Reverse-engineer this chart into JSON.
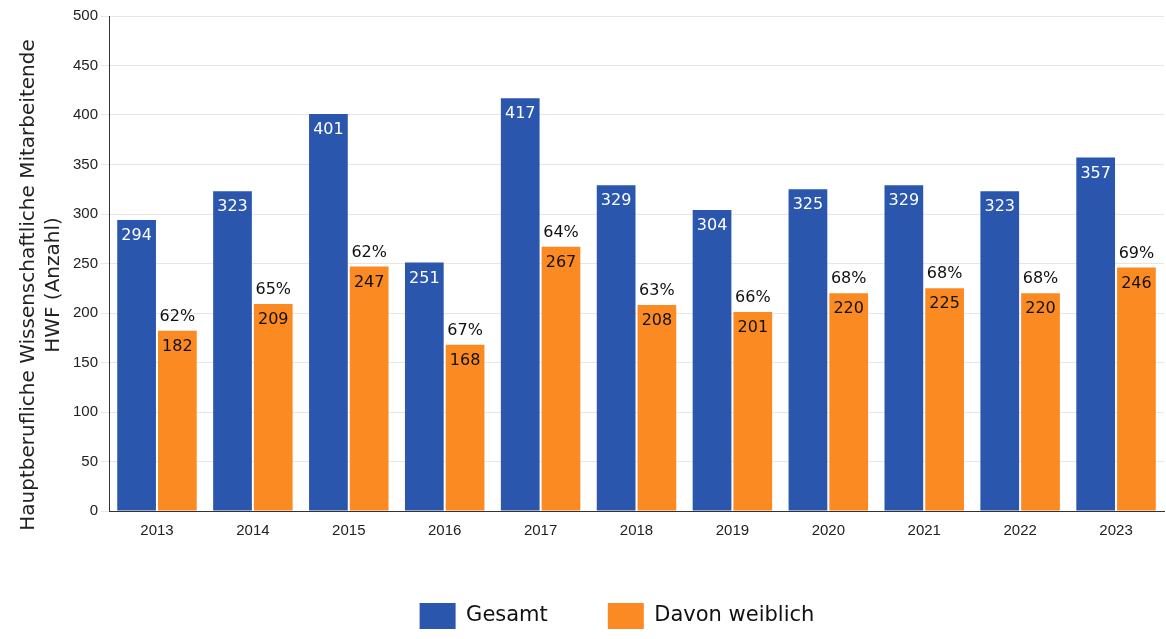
{
  "chart_data": {
    "type": "bar",
    "ylabel": "Hauptberufliche Wissenschaftliche Mitarbeitende HWF (Anzahl)",
    "categories": [
      "2013",
      "2014",
      "2015",
      "2016",
      "2017",
      "2018",
      "2019",
      "2020",
      "2021",
      "2022",
      "2023"
    ],
    "series": [
      {
        "name": "Gesamt",
        "color": "#2a56ad",
        "values": [
          294,
          323,
          401,
          251,
          417,
          329,
          304,
          325,
          329,
          323,
          357
        ]
      },
      {
        "name": "Davon weiblich",
        "color": "#fb8a22",
        "values": [
          182,
          209,
          247,
          168,
          267,
          208,
          201,
          220,
          225,
          220,
          246
        ]
      }
    ],
    "ylim": [
      0,
      500
    ],
    "yticks": [
      0,
      50,
      100,
      150,
      200,
      250,
      300,
      350,
      400,
      450,
      500
    ],
    "grid": "y",
    "legend": "bottom",
    "data_labels": true,
    "annotations": [
      {
        "text": "62%",
        "x": "2013",
        "y": 182
      },
      {
        "text": "65%",
        "x": "2014",
        "y": 209
      },
      {
        "text": "62%",
        "x": "2015",
        "y": 247
      },
      {
        "text": "67%",
        "x": "2016",
        "y": 168
      },
      {
        "text": "64%",
        "x": "2017",
        "y": 267
      },
      {
        "text": "63%",
        "x": "2018",
        "y": 208
      },
      {
        "text": "66%",
        "x": "2019",
        "y": 201
      },
      {
        "text": "68%",
        "x": "2020",
        "y": 220
      },
      {
        "text": "68%",
        "x": "2021",
        "y": 225
      },
      {
        "text": "68%",
        "x": "2022",
        "y": 220
      },
      {
        "text": "69%",
        "x": "2023",
        "y": 246
      }
    ]
  }
}
